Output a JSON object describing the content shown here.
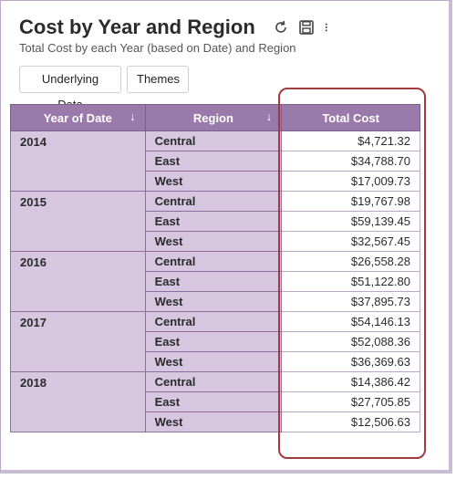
{
  "header": {
    "title": "Cost by Year and Region",
    "subtitle": "Total Cost by each Year (based on Date) and Region"
  },
  "toolbar": {
    "underlying_label": "Underlying Data",
    "themes_label": "Themes"
  },
  "icons": [
    "refresh-icon",
    "save-icon",
    "more-vertical-icon"
  ],
  "table": {
    "headers": [
      "Year of Date",
      "Region",
      "Total Cost"
    ],
    "sort_arrow": "↓",
    "groups": [
      {
        "year": "2014",
        "rows": [
          {
            "region": "Central",
            "cost": "$4,721.32"
          },
          {
            "region": "East",
            "cost": "$34,788.70"
          },
          {
            "region": "West",
            "cost": "$17,009.73"
          }
        ]
      },
      {
        "year": "2015",
        "rows": [
          {
            "region": "Central",
            "cost": "$19,767.98"
          },
          {
            "region": "East",
            "cost": "$59,139.45"
          },
          {
            "region": "West",
            "cost": "$32,567.45"
          }
        ]
      },
      {
        "year": "2016",
        "rows": [
          {
            "region": "Central",
            "cost": "$26,558.28"
          },
          {
            "region": "East",
            "cost": "$51,122.80"
          },
          {
            "region": "West",
            "cost": "$37,895.73"
          }
        ]
      },
      {
        "year": "2017",
        "rows": [
          {
            "region": "Central",
            "cost": "$54,146.13"
          },
          {
            "region": "East",
            "cost": "$52,088.36"
          },
          {
            "region": "West",
            "cost": "$36,369.63"
          }
        ]
      },
      {
        "year": "2018",
        "rows": [
          {
            "region": "Central",
            "cost": "$14,386.42"
          },
          {
            "region": "East",
            "cost": "$27,705.85"
          },
          {
            "region": "West",
            "cost": "$12,506.63"
          }
        ]
      }
    ]
  },
  "colors": {
    "header_bg": "#9a7aaa",
    "cell_bg": "#d7c6df",
    "highlight": "#a23b3b"
  }
}
